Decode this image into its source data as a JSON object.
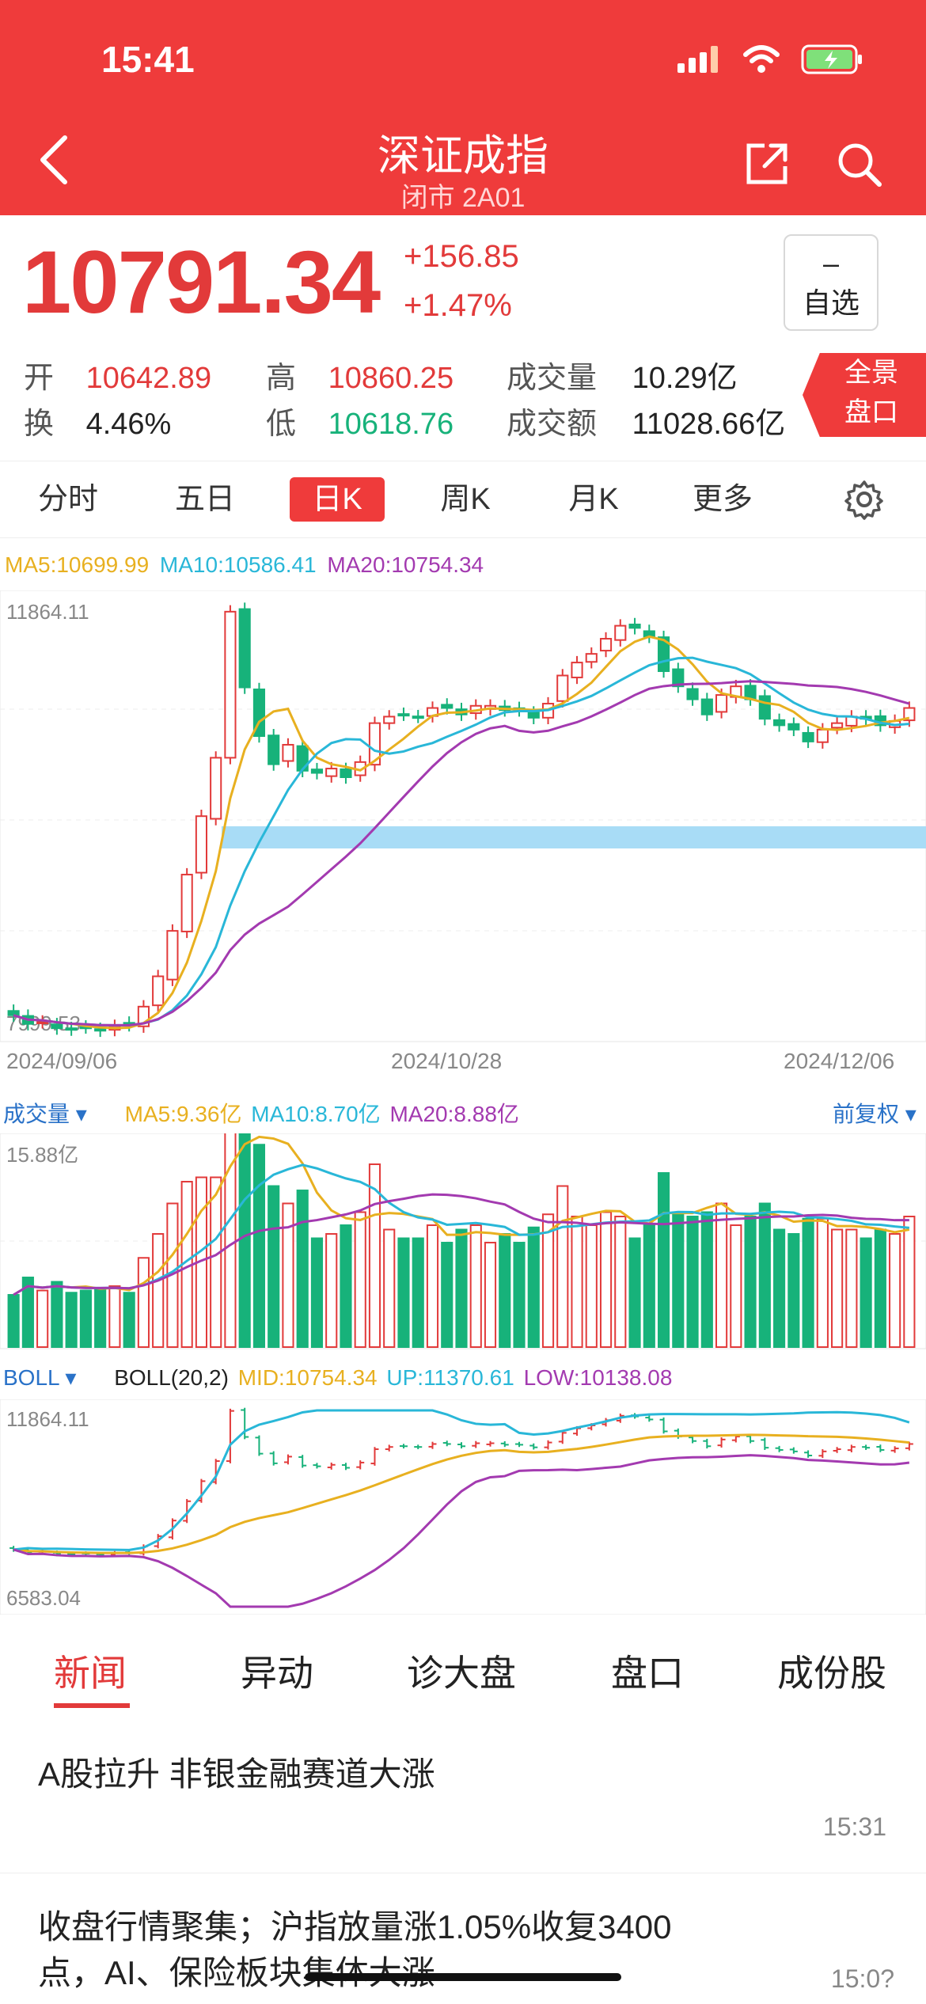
{
  "status": {
    "time": "15:41"
  },
  "nav": {
    "title": "深证成指",
    "subtitle": "闭市 2A01"
  },
  "quote": {
    "price": "10791.34",
    "change": "+156.85",
    "change_pct": "+1.47%",
    "watch_label_top": "–",
    "watch_label": "自选",
    "open_label": "开",
    "open": "10642.89",
    "high_label": "高",
    "high": "10860.25",
    "vol_label": "成交量",
    "vol": "10.29亿",
    "turnover_label": "换",
    "turnover": "4.46%",
    "low_label": "低",
    "low": "10618.76",
    "amount_label": "成交额",
    "amount": "11028.66亿",
    "full_btn_1": "全景",
    "full_btn_2": "盘口"
  },
  "period_tabs": [
    "分时",
    "五日",
    "日K",
    "周K",
    "月K",
    "更多"
  ],
  "active_period": "日K",
  "kline": {
    "ma5": "MA5:10699.99",
    "ma10": "MA10:10586.41",
    "ma20": "MA20:10754.34",
    "ymax_label": "11864.11",
    "ymin_label": "7999.53",
    "dates": [
      "2024/09/06",
      "2024/10/28",
      "2024/12/06"
    ]
  },
  "volume": {
    "label": "成交量 ▾",
    "ma5": "MA5:9.36亿",
    "ma10": "MA10:8.70亿",
    "ma20": "MA20:8.88亿",
    "fq": "前复权 ▾",
    "ymax_label": "15.88亿"
  },
  "boll": {
    "label": "BOLL ▾",
    "params": "BOLL(20,2)",
    "mid": "MID:10754.34",
    "up": "UP:11370.61",
    "low": "LOW:10138.08",
    "ymax_label": "11864.11",
    "ymin_label": "6583.04"
  },
  "bottom_tabs": [
    "新闻",
    "异动",
    "诊大盘",
    "盘口",
    "成份股"
  ],
  "news": [
    {
      "title": "A股拉升 非银金融赛道大涨",
      "time": "15:31"
    },
    {
      "title": "收盘行情聚集；沪指放量涨1.05%收复3400点，AI、保险板块集体大涨",
      "time": "15:0?"
    }
  ],
  "colors": {
    "brand": "#ef3b3b",
    "up": "#e23a3a",
    "down": "#17b27a",
    "ma5": "#e8b020",
    "ma10": "#29b7d8",
    "ma20": "#a33ab0"
  },
  "chart_data": {
    "type": "candlestick",
    "closes": [
      8120,
      8040,
      8060,
      8000,
      7990,
      8010,
      7980,
      8020,
      8030,
      8200,
      8480,
      8900,
      9420,
      9960,
      10500,
      11850,
      11150,
      10700,
      10440,
      10620,
      10380,
      10360,
      10400,
      10320,
      10460,
      10820,
      10880,
      10900,
      10880,
      10960,
      10960,
      10900,
      10980,
      10980,
      10940,
      10940,
      10870,
      11000,
      11260,
      11380,
      11460,
      11600,
      11720,
      11700,
      11620,
      11300,
      11160,
      11040,
      10900,
      11080,
      11160,
      11040,
      10860,
      10800,
      10760,
      10650,
      10760,
      10820,
      10880,
      10860,
      10800,
      10840,
      10960
    ]
  }
}
